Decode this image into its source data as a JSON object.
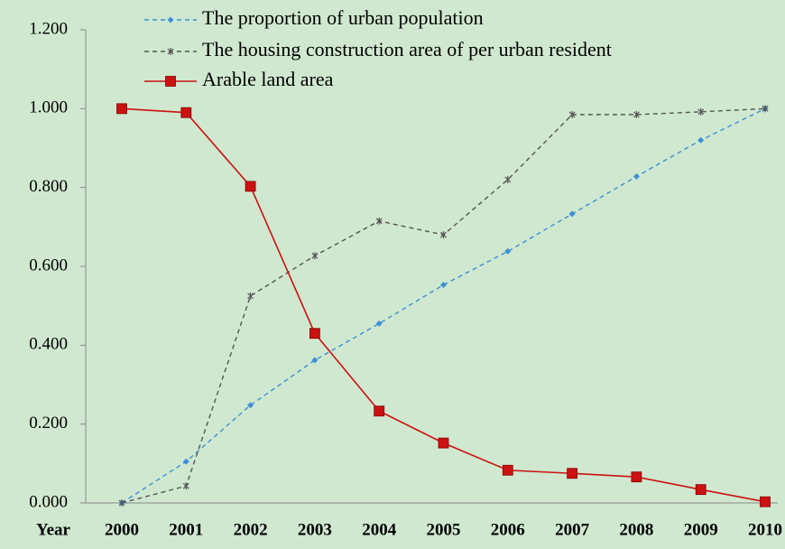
{
  "chart_data": {
    "type": "line",
    "x_label": "Year",
    "categories": [
      "2000",
      "2001",
      "2002",
      "2003",
      "2004",
      "2005",
      "2006",
      "2007",
      "2008",
      "2009",
      "2010"
    ],
    "series": [
      {
        "name": "The proportion of urban population",
        "color": "#3f8fd6",
        "dashed": true,
        "marker": "diamond",
        "values": [
          0,
          0.105,
          0.248,
          0.362,
          0.455,
          0.553,
          0.638,
          0.733,
          0.828,
          0.92,
          1.0
        ]
      },
      {
        "name": "The housing construction area of per urban resident",
        "color": "#555555",
        "dashed": true,
        "marker": "star",
        "values": [
          0,
          0.043,
          0.525,
          0.627,
          0.715,
          0.68,
          0.82,
          0.985,
          0.985,
          0.992,
          1.0
        ]
      },
      {
        "name": "Arable land area",
        "color": "#cc1111",
        "dashed": false,
        "marker": "square",
        "values": [
          1.0,
          0.99,
          0.803,
          0.43,
          0.233,
          0.152,
          0.083,
          0.075,
          0.066,
          0.034,
          0.003
        ]
      }
    ],
    "ylim": [
      0,
      1.2
    ],
    "yticks": [
      {
        "value": 0,
        "label": "0.000"
      },
      {
        "value": 0.2,
        "label": "0.200"
      },
      {
        "value": 0.4,
        "label": "0.400"
      },
      {
        "value": 0.6,
        "label": "0.600"
      },
      {
        "value": 0.8,
        "label": "0.800"
      },
      {
        "value": 1.0,
        "label": "1.000"
      },
      {
        "value": 1.2,
        "label": "1.200"
      }
    ],
    "grid": false
  }
}
